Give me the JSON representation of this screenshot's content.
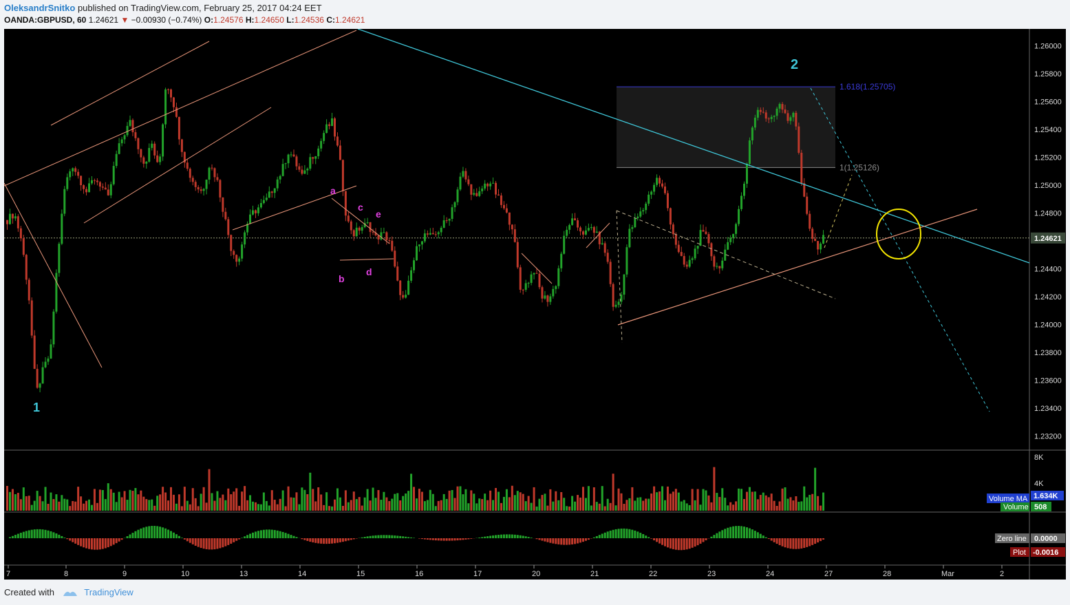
{
  "header": {
    "author": "OleksandrSnitko",
    "published": "published on TradingView.com, February 25, 2017 04:24 EET",
    "symbol": "OANDA:GBPUSD, 60",
    "last": "1.24621",
    "change": "−0.00930 (−0.74%)",
    "o_label": "O:",
    "o_value": "1.24576",
    "h_label": "H:",
    "h_value": "1.24650",
    "l_label": "L:",
    "l_value": "1.24536",
    "c_label": "C:",
    "c_value": "1.24621"
  },
  "footer": {
    "created_with": "Created with",
    "brand": "TradingView"
  },
  "colors": {
    "bg": "#000000",
    "up": "#22a32a",
    "down": "#c0392b",
    "cyan": "#3fc6d8",
    "salmon": "#e9967a",
    "magenta": "#e040e0",
    "yellow": "#f5e600"
  },
  "chart_data": {
    "type": "candlestick",
    "y_axis_ticks": [
      "1.26000",
      "1.25800",
      "1.25600",
      "1.25400",
      "1.25200",
      "1.25000",
      "1.24800",
      "1.24621",
      "1.24400",
      "1.24200",
      "1.24000",
      "1.23800",
      "1.23600",
      "1.23400",
      "1.23200"
    ],
    "current_price": "1.24621",
    "ylim": [
      1.231,
      1.2612
    ],
    "x_axis_ticks": [
      "7",
      "8",
      "9",
      "10",
      "13",
      "14",
      "15",
      "16",
      "17",
      "20",
      "21",
      "22",
      "23",
      "24",
      "27",
      "28",
      "Mar",
      "2"
    ],
    "waves": [
      "1",
      "2"
    ],
    "pattern_labels": [
      "a",
      "b",
      "c",
      "d",
      "e"
    ],
    "fib_levels": [
      {
        "label": "1.618(1.25705)",
        "price": 1.25705
      },
      {
        "label": "1(1.25126)",
        "price": 1.25126
      }
    ],
    "price_path": [
      1.2475,
      1.248,
      1.246,
      1.242,
      1.235,
      1.2368,
      1.238,
      1.245,
      1.25,
      1.2515,
      1.2505,
      1.2495,
      1.2505,
      1.25,
      1.249,
      1.252,
      1.2535,
      1.2545,
      1.253,
      1.2515,
      1.253,
      1.251,
      1.2575,
      1.256,
      1.253,
      1.251,
      1.25,
      1.2495,
      1.2515,
      1.2505,
      1.248,
      1.2455,
      1.2445,
      1.247,
      1.248,
      1.2485,
      1.249,
      1.25,
      1.251,
      1.2525,
      1.2515,
      1.2505,
      1.252,
      1.2525,
      1.254,
      1.2545,
      1.252,
      1.2475,
      1.2465,
      1.247,
      1.2472,
      1.2462,
      1.2465,
      1.246,
      1.243,
      1.2415,
      1.244,
      1.246,
      1.2465,
      1.2462,
      1.247,
      1.2475,
      1.249,
      1.251,
      1.2498,
      1.249,
      1.25,
      1.2502,
      1.249,
      1.248,
      1.247,
      1.2425,
      1.243,
      1.244,
      1.242,
      1.2418,
      1.243,
      1.246,
      1.2475,
      1.247,
      1.2465,
      1.247,
      1.246,
      1.245,
      1.241,
      1.242,
      1.2465,
      1.2475,
      1.2482,
      1.2495,
      1.2505,
      1.2495,
      1.247,
      1.245,
      1.244,
      1.245,
      1.2465,
      1.2462,
      1.244,
      1.2445,
      1.246,
      1.2475,
      1.25,
      1.254,
      1.2555,
      1.2548,
      1.255,
      1.256,
      1.2545,
      1.2555,
      1.25,
      1.247,
      1.2455,
      1.2462
    ],
    "indicators": {
      "volume": {
        "label": "Volume",
        "value": "508",
        "ma_label": "Volume MA",
        "ma_value": "1.634K",
        "axis": [
          "8K",
          "4K"
        ]
      },
      "oscillator": {
        "zero_label": "Zero line",
        "zero_value": "0.0000",
        "plot_label": "Plot",
        "plot_value": "-0.0016"
      }
    }
  }
}
